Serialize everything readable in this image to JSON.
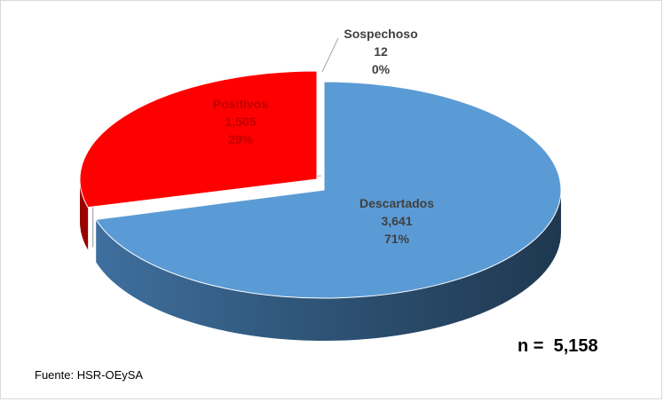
{
  "chart_data": {
    "type": "pie",
    "title": "",
    "slices": [
      {
        "label": "Descartados",
        "value": 3641,
        "value_label": "3,641",
        "percent_label": "71%",
        "color": "#5b9bd5"
      },
      {
        "label": "Sospechoso",
        "value": 12,
        "value_label": "12",
        "percent_label": "0%",
        "color": "#ffffff"
      },
      {
        "label": "Positivos",
        "value": 1505,
        "value_label": "1,505",
        "percent_label": "29%",
        "color": "#ff0000"
      }
    ],
    "total_label": "n =  5,158",
    "source": "Fuente: HSR-OEySA"
  }
}
